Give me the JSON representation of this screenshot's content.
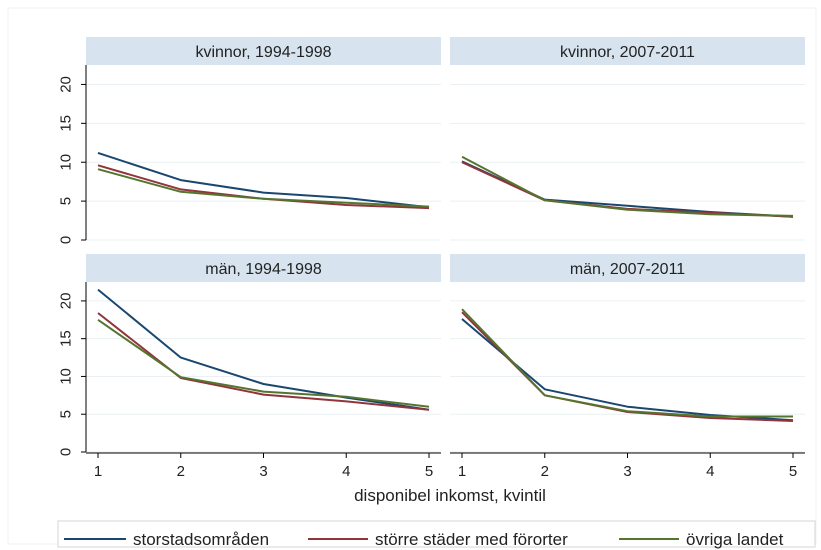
{
  "chart_data": {
    "type": "line",
    "xlabel": "disponibel inkomst, kvintil",
    "ylabel": "",
    "x": [
      1,
      2,
      3,
      4,
      5
    ],
    "xticks": [
      "1",
      "2",
      "3",
      "4",
      "5"
    ],
    "yticks": [
      "0",
      "5",
      "10",
      "15",
      "20"
    ],
    "ylim": [
      0,
      22.5
    ],
    "grid": true,
    "legend_position": "bottom",
    "series_names": [
      "storstadsområden",
      "större städer med förorter",
      "övriga landet"
    ],
    "colors": {
      "storstad": "#1a476f",
      "storre": "#90353b",
      "ovriga": "#55752f",
      "strip": "#d7e4ef",
      "grid": "#eaf0f3"
    },
    "panels": [
      {
        "title": "kvinnor, 1994-1998",
        "series": [
          {
            "name": "storstadsområden",
            "values": [
              11.2,
              7.7,
              6.1,
              5.4,
              4.2
            ]
          },
          {
            "name": "större städer med förorter",
            "values": [
              9.6,
              6.5,
              5.3,
              4.5,
              4.1
            ]
          },
          {
            "name": "övriga landet",
            "values": [
              9.1,
              6.2,
              5.3,
              4.8,
              4.3
            ]
          }
        ]
      },
      {
        "title": "kvinnor, 2007-2011",
        "series": [
          {
            "name": "storstadsområden",
            "values": [
              10.1,
              5.2,
              4.4,
              3.6,
              3.0
            ]
          },
          {
            "name": "större städer med förorter",
            "values": [
              10.0,
              5.1,
              4.0,
              3.5,
              3.0
            ]
          },
          {
            "name": "övriga landet",
            "values": [
              10.7,
              5.1,
              3.9,
              3.3,
              3.1
            ]
          }
        ]
      },
      {
        "title": "män, 1994-1998",
        "series": [
          {
            "name": "storstadsområden",
            "values": [
              21.5,
              12.5,
              9.0,
              7.2,
              5.6
            ]
          },
          {
            "name": "större städer med förorter",
            "values": [
              18.4,
              9.8,
              7.6,
              6.7,
              5.6
            ]
          },
          {
            "name": "övriga landet",
            "values": [
              17.5,
              9.9,
              8.0,
              7.3,
              6.0
            ]
          }
        ]
      },
      {
        "title": "män, 2007-2011",
        "series": [
          {
            "name": "storstadsområden",
            "values": [
              17.6,
              8.3,
              6.0,
              4.9,
              4.2
            ]
          },
          {
            "name": "större städer med förorter",
            "values": [
              18.5,
              7.5,
              5.3,
              4.5,
              4.1
            ]
          },
          {
            "name": "övriga landet",
            "values": [
              18.9,
              7.5,
              5.4,
              4.7,
              4.7
            ]
          }
        ]
      }
    ]
  }
}
